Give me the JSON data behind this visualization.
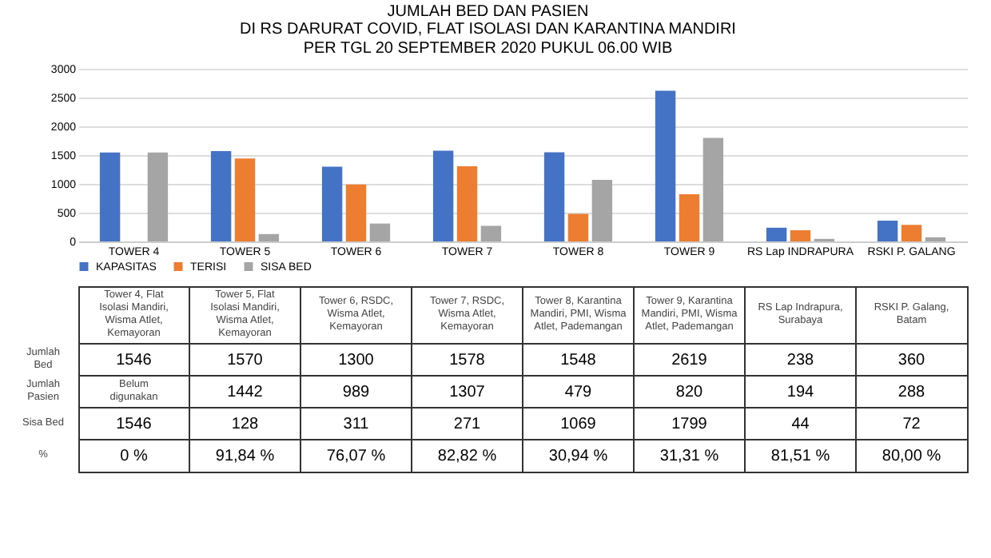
{
  "chart_data": {
    "type": "bar",
    "title": "JUMLAH BED DAN PASIEN",
    "subtitle": "DI RS DARURAT COVID, FLAT ISOLASI  DAN KARANTINA MANDIRI\nPER TGL 20 SEPTEMBER 2020 PUKUL 06.00 WIB",
    "categories": [
      "TOWER 4",
      "TOWER 5",
      "TOWER 6",
      "TOWER 7",
      "TOWER 8",
      "TOWER 9",
      "RS Lap INDRAPURA",
      "RSKI P. GALANG"
    ],
    "series": [
      {
        "name": "KAPASITAS",
        "color": "#4472c4",
        "values": [
          1546,
          1570,
          1300,
          1578,
          1548,
          2619,
          238,
          360
        ]
      },
      {
        "name": "TERISI",
        "color": "#ed7d31",
        "values": [
          null,
          1442,
          989,
          1307,
          479,
          820,
          194,
          288
        ]
      },
      {
        "name": "SISA BED",
        "color": "#a5a5a5",
        "values": [
          1546,
          128,
          311,
          271,
          1069,
          1799,
          44,
          72
        ]
      }
    ],
    "ylim": [
      0,
      3000
    ],
    "yticks": [
      0,
      500,
      {
        "value": 1000,
        "label": "1000"
      },
      {
        "value": 1500,
        "label": "1500"
      },
      {
        "value": 2000,
        "label": "2000"
      },
      {
        "value": 2500,
        "label": "2500"
      },
      {
        "value": 3000,
        "label": "3000"
      }
    ],
    "grid": "y",
    "legend": "bottom",
    "data_labels": true,
    "annotations": [
      "Tower 4, Flat Isolasi Mandiri, Wisma Atlet, Kemayoran",
      "Tower 5, Flat Isolasi Mandiri, Wisma Atlet, Kemayoran",
      "Tower 6, RSDC, Wisma Atlet, Kemayoran",
      "Tower 7, RSDC, Wisma Atlet, Kemayoran",
      "Tower 8, Karantina Mandiri, PMI, Wisma Atlet, Pademangan",
      "Tower 9, Karantina Mandiri, PMI, Wisma Atlet, Pademangan",
      "RS Lap Indrapura, Surabaya",
      "RSKI P. Galang, Batam",
      "Jumlah Bed",
      "Jumlah Pasien",
      "Sisa Bed",
      "%",
      "0 %",
      "91,84 %",
      "76,07 %",
      "82,82 %",
      "30,94 %",
      "31,31 %",
      "81,51 %",
      "80,00 %",
      "Belum digunakan"
    ]
  }
}
